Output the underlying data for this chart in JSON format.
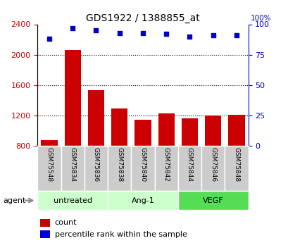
{
  "title": "GDS1922 / 1388855_at",
  "samples": [
    "GSM75548",
    "GSM75834",
    "GSM75836",
    "GSM75838",
    "GSM75840",
    "GSM75842",
    "GSM75844",
    "GSM75846",
    "GSM75848"
  ],
  "counts": [
    870,
    2060,
    1530,
    1290,
    1140,
    1230,
    1165,
    1200,
    1210
  ],
  "percentile_ranks": [
    88,
    97,
    95,
    93,
    93,
    92,
    90,
    91,
    91
  ],
  "groups": [
    {
      "label": "untreated",
      "indices": [
        0,
        1,
        2
      ],
      "color": "#ccffcc"
    },
    {
      "label": "Ang-1",
      "indices": [
        3,
        4,
        5
      ],
      "color": "#ccffcc"
    },
    {
      "label": "VEGF",
      "indices": [
        6,
        7,
        8
      ],
      "color": "#55dd55"
    }
  ],
  "ylim_left": [
    800,
    2400
  ],
  "yticks_left": [
    800,
    1200,
    1600,
    2000,
    2400
  ],
  "ylim_right": [
    0,
    100
  ],
  "yticks_right": [
    0,
    25,
    50,
    75,
    100
  ],
  "bar_color": "#cc0000",
  "scatter_color": "#0000cc",
  "bar_width": 0.7,
  "tick_label_color_left": "#cc0000",
  "tick_label_color_right": "#0000cc",
  "agent_label": "agent",
  "legend_count_label": "count",
  "legend_percentile_label": "percentile rank within the sample",
  "sample_bg_color": "#cccccc",
  "fig_bg_color": "#ffffff",
  "group_label_color_untreated_ang": "#ccffcc",
  "group_label_color_vegf": "#44dd44"
}
